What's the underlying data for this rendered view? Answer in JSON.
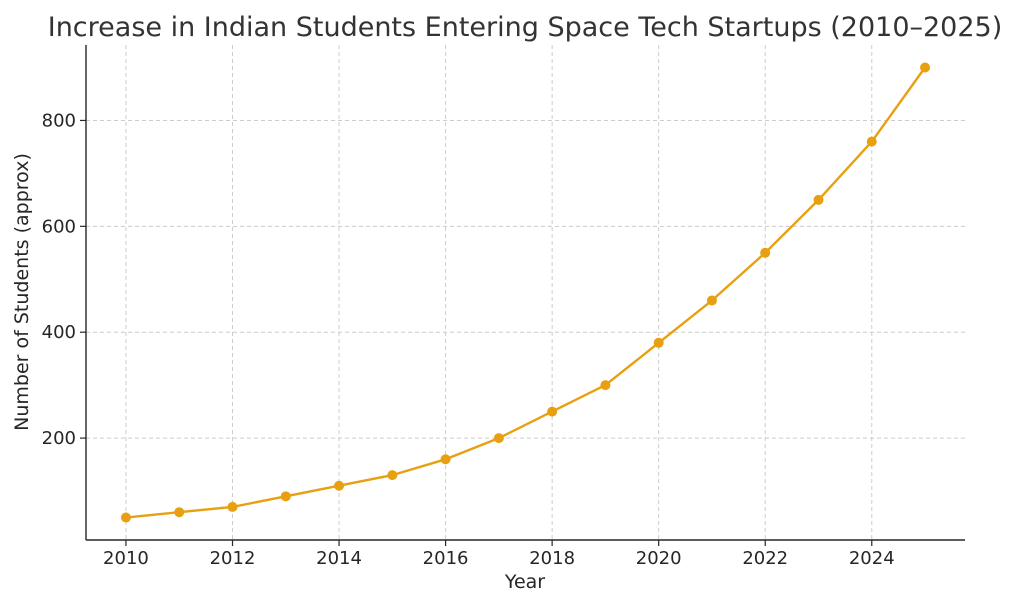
{
  "chart_data": {
    "type": "line",
    "title": "Increase in Indian Students Entering Space Tech Startups (2010–2025)",
    "xlabel": "Year",
    "ylabel": "Number of Students (approx)",
    "x": [
      2010,
      2011,
      2012,
      2013,
      2014,
      2015,
      2016,
      2017,
      2018,
      2019,
      2020,
      2021,
      2022,
      2023,
      2024,
      2025
    ],
    "series": [
      {
        "values": [
          50,
          60,
          70,
          90,
          110,
          130,
          160,
          200,
          250,
          300,
          380,
          460,
          550,
          650,
          760,
          900
        ],
        "color": "#e8a010"
      }
    ],
    "xticks": [
      2010,
      2012,
      2014,
      2016,
      2018,
      2020,
      2022,
      2024
    ],
    "yticks": [
      200,
      400,
      600,
      800
    ],
    "xlim": [
      2009.25,
      2025.75
    ],
    "ylim": [
      7.5,
      942.5
    ],
    "grid": true,
    "legend": "none"
  }
}
